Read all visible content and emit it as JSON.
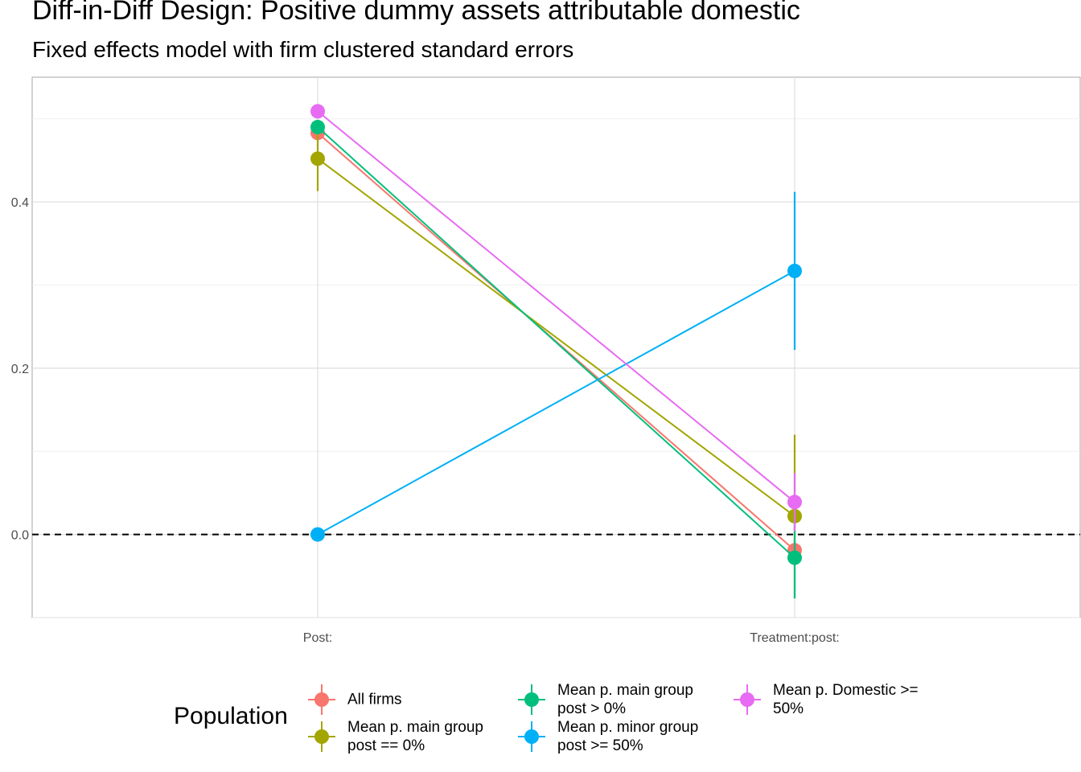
{
  "chart_data": {
    "type": "line",
    "title": "Diff-in-Diff Design: Positive dummy assets attributable domestic",
    "subtitle": "Fixed effects model with firm clustered standard errors",
    "xlabel": "",
    "ylabel": "",
    "categories": [
      "Post:",
      "Treatment:post:"
    ],
    "ylim": [
      -0.1,
      0.55
    ],
    "yticks": [
      0.0,
      0.2,
      0.4
    ],
    "ytick_labels": [
      "0.0",
      "0.2",
      "0.4"
    ],
    "grid": true,
    "reference_line": {
      "y": 0,
      "style": "dashed"
    },
    "legend": {
      "title": "Population",
      "position": "bottom"
    },
    "series": [
      {
        "name": "All firms",
        "color": "#F8766D",
        "values": [
          0.483,
          -0.019
        ],
        "lower": [
          0.483,
          -0.035
        ],
        "upper": [
          0.483,
          -0.003
        ]
      },
      {
        "name": "Mean p. main group\npost == 0%",
        "color": "#A3A500",
        "values": [
          0.452,
          0.022
        ],
        "lower": [
          0.413,
          -0.075
        ],
        "upper": [
          0.491,
          0.12
        ]
      },
      {
        "name": "Mean p. main group\npost > 0%",
        "color": "#00BF7D",
        "values": [
          0.49,
          -0.028
        ],
        "lower": [
          0.49,
          -0.077
        ],
        "upper": [
          0.49,
          0.021
        ]
      },
      {
        "name": "Mean p. minor group\npost >= 50%",
        "color": "#00B0F6",
        "values": [
          0.0,
          0.317
        ],
        "lower": [
          0.0,
          0.222
        ],
        "upper": [
          0.0,
          0.412
        ]
      },
      {
        "name": "Mean p. Domestic >=\n50%",
        "color": "#E76BF3",
        "values": [
          0.509,
          0.039
        ],
        "lower": [
          0.509,
          0.004
        ],
        "upper": [
          0.509,
          0.074
        ]
      }
    ]
  }
}
